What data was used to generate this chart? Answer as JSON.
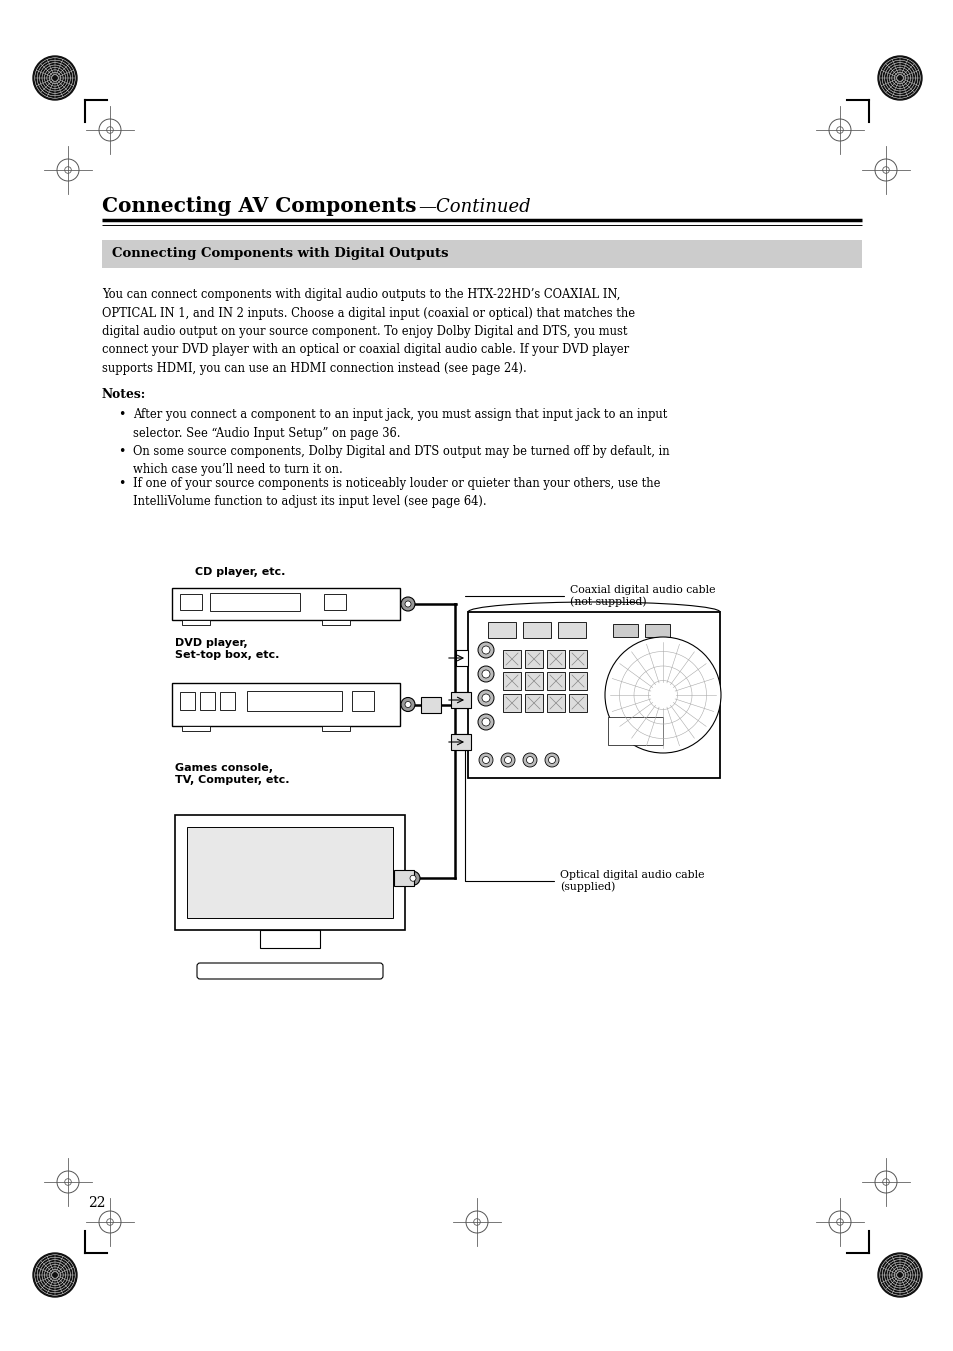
{
  "bg_color": "#ffffff",
  "page_width": 9.54,
  "page_height": 13.51,
  "title_bold": "Connecting AV Components",
  "title_italic": "—Continued",
  "section_header": "Connecting Components with Digital Outputs",
  "section_header_bg": "#cccccc",
  "body_text": "You can connect components with digital audio outputs to the HTX-22HD’s COAXIAL IN,\nOPTICAL IN 1, and IN 2 inputs. Choose a digital input (coaxial or optical) that matches the\ndigital audio output on your source component. To enjoy Dolby Digital and DTS, you must\nconnect your DVD player with an optical or coaxial digital audio cable. If your DVD player\nsupports HDMI, you can use an HDMI connection instead (see page 24).",
  "notes_label": "Notes:",
  "note1": "After you connect a component to an input jack, you must assign that input jack to an input\nselector. See “Audio Input Setup” on page 36.",
  "note2": "On some source components, Dolby Digital and DTS output may be turned off by default, in\nwhich case you’ll need to turn it on.",
  "note3": "If one of your source components is noticeably louder or quieter than your others, use the\nIntelliVolume function to adjust its input level (see page 64).",
  "label_cd": "CD player, etc.",
  "label_dvd": "DVD player,\nSet-top box, etc.",
  "label_games": "Games console,\nTV, Computer, etc.",
  "label_coaxial": "Coaxial digital audio cable\n(not supplied)",
  "label_optical": "Optical digital audio cable\n(supplied)",
  "page_number": "22"
}
